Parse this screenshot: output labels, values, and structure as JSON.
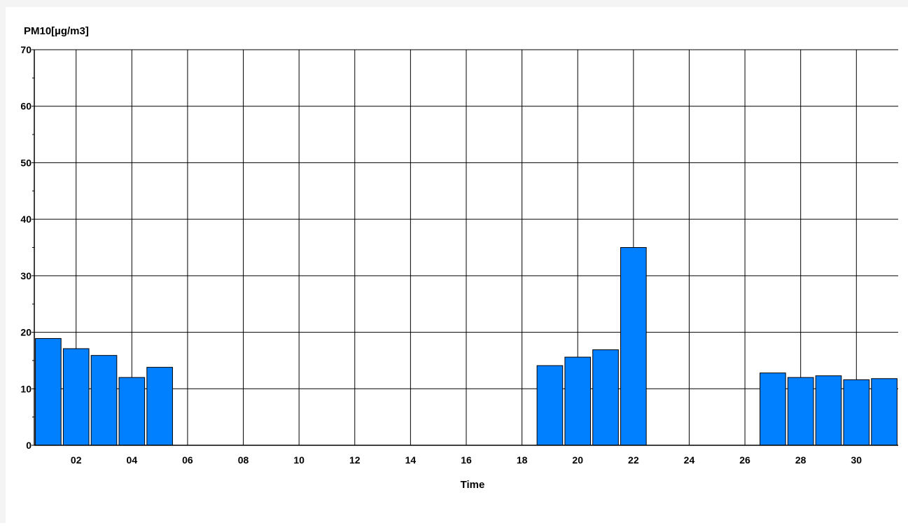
{
  "chart_data": {
    "type": "bar",
    "ylabel": "PM10[µg/m3]",
    "xlabel": "Time",
    "x": [
      1,
      2,
      3,
      4,
      5,
      19,
      20,
      21,
      22,
      27,
      28,
      29,
      30,
      31
    ],
    "values": [
      18.9,
      17.1,
      15.9,
      12.0,
      13.8,
      14.1,
      15.6,
      16.9,
      35.0,
      12.8,
      12.0,
      12.3,
      11.6,
      11.8
    ],
    "xlim": [
      0.5,
      31.5
    ],
    "ylim": [
      0,
      70
    ],
    "x_ticks": [
      "02",
      "04",
      "06",
      "08",
      "10",
      "12",
      "14",
      "16",
      "18",
      "20",
      "22",
      "24",
      "26",
      "28",
      "30"
    ],
    "y_ticks": [
      "0",
      "10",
      "20",
      "30",
      "40",
      "50",
      "60",
      "70"
    ],
    "grid": true,
    "bar_color": "#0080ff",
    "bar_edge_color": "#000000"
  }
}
